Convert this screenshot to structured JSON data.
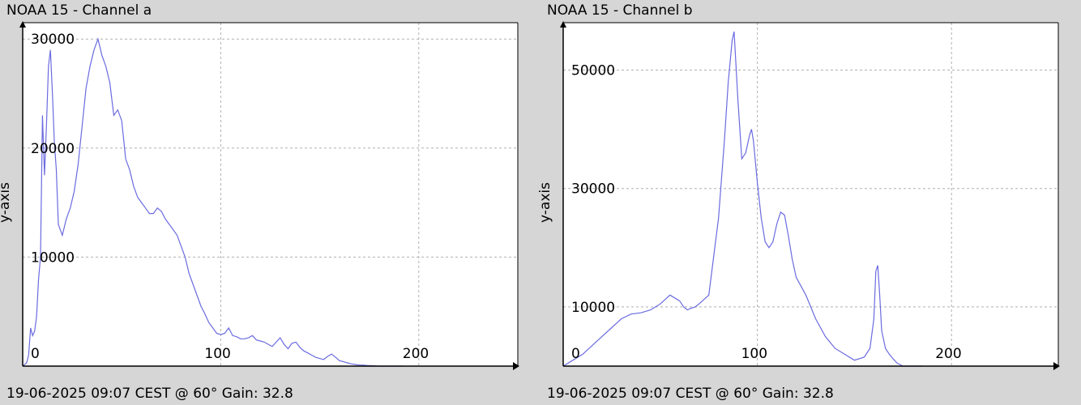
{
  "chart_data": [
    {
      "type": "line",
      "title": "NOAA 15 - Channel a",
      "ylabel": "y-axis",
      "xlabel": "",
      "footer": "19-06-2025 09:07 CEST @ 60° Gain: 32.8",
      "xlim": [
        0,
        250
      ],
      "ylim": [
        0,
        31500
      ],
      "x_ticks": [
        0,
        100,
        200
      ],
      "y_ticks": [
        10000,
        20000,
        30000
      ],
      "grid": true,
      "line_color": "#6b6be0",
      "series": [
        {
          "x": [
            0,
            2,
            3,
            4,
            5,
            6,
            7,
            8,
            9,
            10,
            11,
            12,
            13,
            14,
            15,
            16,
            17,
            18,
            19,
            20,
            22,
            24,
            26,
            28,
            30,
            32,
            34,
            36,
            38,
            40,
            42,
            44,
            46,
            48,
            50,
            52,
            54,
            56,
            58,
            60,
            62,
            64,
            66,
            68,
            70,
            72,
            74,
            76,
            78,
            80,
            82,
            84,
            86,
            88,
            90,
            92,
            94,
            96,
            98,
            100,
            102,
            104,
            106,
            108,
            110,
            112,
            114,
            116,
            118,
            120,
            122,
            124,
            126,
            128,
            130,
            132,
            134,
            136,
            138,
            140,
            142,
            144,
            146,
            148,
            150,
            152,
            154,
            156,
            158,
            160,
            162,
            164,
            166,
            168,
            170,
            172,
            174,
            176,
            178,
            180,
            182,
            184,
            186,
            188,
            190,
            192
          ],
          "y": [
            0,
            300,
            1000,
            3500,
            2800,
            3200,
            4500,
            8000,
            10000,
            23000,
            17500,
            22000,
            27500,
            29000,
            25000,
            20500,
            18000,
            13000,
            12500,
            12000,
            13500,
            14500,
            16000,
            18500,
            22000,
            25500,
            27500,
            29000,
            30000,
            28500,
            27500,
            26000,
            23000,
            23500,
            22500,
            19000,
            18000,
            16500,
            15500,
            15000,
            14500,
            14000,
            14000,
            14500,
            14200,
            13500,
            13000,
            12500,
            12000,
            11000,
            10000,
            8500,
            7500,
            6500,
            5500,
            4800,
            4000,
            3500,
            3000,
            2900,
            3000,
            3500,
            2800,
            2700,
            2500,
            2500,
            2600,
            2800,
            2400,
            2300,
            2200,
            2000,
            1800,
            2200,
            2600,
            2000,
            1600,
            2100,
            2200,
            1700,
            1400,
            1200,
            1000,
            800,
            700,
            600,
            900,
            1100,
            800,
            500,
            400,
            300,
            200,
            150,
            100,
            100,
            50,
            50,
            20,
            0,
            0,
            0,
            0,
            0,
            0,
            0
          ]
        }
      ]
    },
    {
      "type": "line",
      "title": "NOAA 15 - Channel b",
      "ylabel": "y-axis",
      "xlabel": "",
      "footer": "19-06-2025 09:07 CEST @ 60° Gain: 32.8",
      "xlim": [
        0,
        255
      ],
      "ylim": [
        0,
        58000
      ],
      "x_ticks": [
        0,
        100,
        200
      ],
      "y_ticks": [
        10000,
        30000,
        50000
      ],
      "grid": true,
      "line_color": "#6b6be0",
      "series": [
        {
          "x": [
            0,
            5,
            10,
            15,
            20,
            25,
            30,
            35,
            40,
            45,
            50,
            55,
            60,
            62,
            64,
            66,
            68,
            70,
            75,
            80,
            83,
            85,
            87,
            88,
            90,
            92,
            94,
            96,
            97,
            98,
            100,
            102,
            104,
            106,
            108,
            110,
            112,
            114,
            116,
            118,
            120,
            125,
            130,
            135,
            140,
            145,
            150,
            155,
            158,
            160,
            161,
            162,
            163,
            164,
            166,
            168,
            170,
            172,
            175,
            180,
            185
          ],
          "y": [
            0,
            1000,
            2000,
            3500,
            5000,
            6500,
            8000,
            8800,
            9000,
            9500,
            10500,
            12000,
            11000,
            10000,
            9500,
            9800,
            10000,
            10500,
            12000,
            25000,
            38000,
            48000,
            55000,
            56500,
            45000,
            35000,
            36000,
            39000,
            40000,
            38000,
            31000,
            25000,
            21000,
            20000,
            21000,
            24000,
            26000,
            25500,
            22000,
            18000,
            15000,
            12000,
            8000,
            5000,
            3000,
            2000,
            1000,
            1500,
            3000,
            8000,
            16000,
            17000,
            12000,
            6000,
            3000,
            2000,
            1200,
            500,
            0,
            0,
            0
          ]
        }
      ]
    }
  ]
}
